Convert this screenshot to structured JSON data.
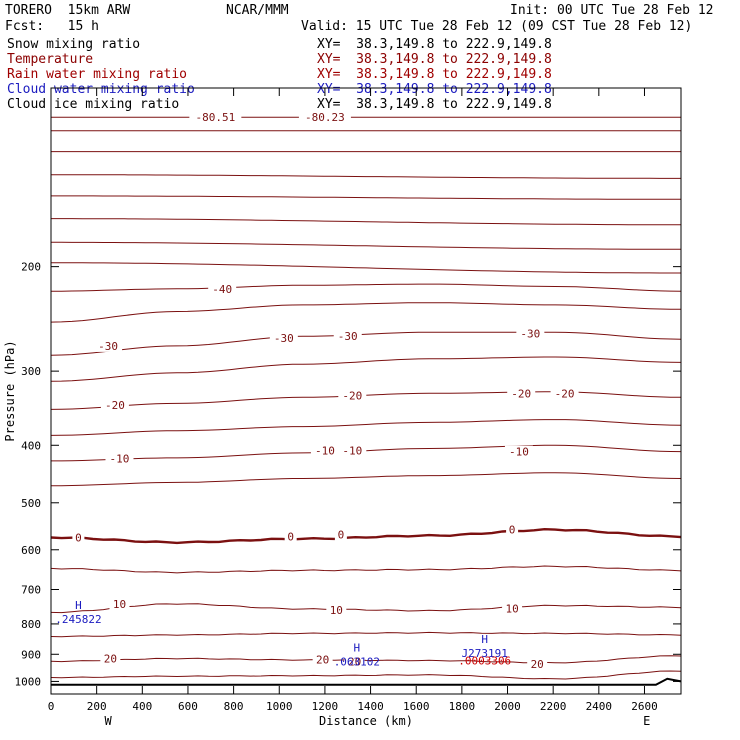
{
  "header": {
    "model": "TORERO  15km ARW",
    "center": "NCAR/MMM",
    "init": "Init: 00 UTC Tue 28 Feb 12",
    "fcst": "Fcst:   15 h",
    "valid": "Valid: 15 UTC Tue 28 Feb 12 (09 CST Tue 28 Feb 12)",
    "fields": [
      {
        "label": "Snow mixing ratio",
        "xy": "XY=  38.3,149.8 to 222.9,149.8",
        "color": "#000000"
      },
      {
        "label": "Temperature",
        "xy": "XY=  38.3,149.8 to 222.9,149.8",
        "color": "#a00000"
      },
      {
        "label": "Rain water mixing ratio",
        "xy": "XY=  38.3,149.8 to 222.9,149.8",
        "color": "#a00000"
      },
      {
        "label": "Cloud water mixing ratio",
        "xy": "XY=  38.3,149.8 to 222.9,149.8",
        "color": "#1b1bbf"
      },
      {
        "label": "Cloud ice mixing ratio",
        "xy": "XY=  38.3,149.8 to 222.9,149.8",
        "color": "#000000"
      }
    ]
  },
  "chart_data": {
    "type": "contour",
    "xlabel": "Distance (km)",
    "ylabel": "Pressure (hPa)",
    "xlim": [
      0,
      2760
    ],
    "ylim": [
      1050,
      100
    ],
    "y_scale": "log",
    "x_ticks": [
      0,
      200,
      400,
      600,
      800,
      1000,
      1200,
      1400,
      1600,
      1800,
      2000,
      2200,
      2400,
      2600
    ],
    "y_ticks": [
      200,
      300,
      400,
      500,
      600,
      700,
      800,
      900,
      1000
    ],
    "x_end_labels": {
      "left": "W",
      "right": "E"
    },
    "colors": {
      "temperature": "#7b1010",
      "cloud_water": "#1b1bbf",
      "rain_water": "#cc0000",
      "terrain": "#000000"
    },
    "temperature_contours": [
      {
        "value": -80,
        "pressure": [
          112,
          112
        ]
      },
      {
        "value": -75,
        "pressure": [
          118,
          118
        ]
      },
      {
        "value": -70,
        "pressure": [
          128,
          128
        ]
      },
      {
        "value": -65,
        "pressure": [
          140,
          142
        ]
      },
      {
        "value": -60,
        "pressure": [
          152,
          154
        ]
      },
      {
        "value": -55,
        "pressure": [
          166,
          170
        ]
      },
      {
        "value": -50,
        "pressure": [
          182,
          187
        ]
      },
      {
        "value": -45,
        "pressure": [
          197,
          205
        ]
      },
      {
        "value": -40,
        "pressure": [
          220,
          218,
          215,
          214,
          216,
          220
        ]
      },
      {
        "value": -35,
        "pressure": [
          248,
          238,
          232,
          230,
          232,
          236
        ]
      },
      {
        "value": -30,
        "pressure": [
          282,
          272,
          262,
          258,
          258,
          265
        ]
      },
      {
        "value": -25,
        "pressure": [
          312,
          302,
          292,
          286,
          284,
          290
        ]
      },
      {
        "value": -20,
        "pressure": [
          348,
          340,
          332,
          327,
          325,
          332
        ]
      },
      {
        "value": -15,
        "pressure": [
          385,
          378,
          372,
          366,
          362,
          370
        ]
      },
      {
        "value": -10,
        "pressure": [
          425,
          420,
          412,
          405,
          400,
          410
        ]
      },
      {
        "value": -5,
        "pressure": [
          468,
          462,
          455,
          450,
          445,
          455
        ]
      },
      {
        "value": 0,
        "pressure": [
          572,
          583,
          575,
          568,
          555,
          570
        ]
      },
      {
        "value": 5,
        "pressure": [
          645,
          655,
          650,
          648,
          640,
          650
        ]
      },
      {
        "value": 10,
        "pressure": [
          765,
          740,
          755,
          760,
          745,
          750
        ]
      },
      {
        "value": 15,
        "pressure": [
          840,
          835,
          830,
          828,
          830,
          835
        ]
      },
      {
        "value": 20,
        "pressure": [
          925,
          915,
          920,
          922,
          930,
          905
        ]
      },
      {
        "value": 25,
        "pressure": [
          985,
          980,
          978,
          975,
          990,
          960
        ]
      }
    ],
    "temperature_labels": [
      {
        "text": "-80.51",
        "x": 720,
        "p": 112
      },
      {
        "text": "-80.23",
        "x": 1200,
        "p": 112
      },
      {
        "text": "-40",
        "x": 750,
        "p": 218
      },
      {
        "text": "-30",
        "x": 250,
        "p": 272
      },
      {
        "text": "-30",
        "x": 1020,
        "p": 264
      },
      {
        "text": "-30",
        "x": 1300,
        "p": 262
      },
      {
        "text": "-30",
        "x": 2100,
        "p": 259
      },
      {
        "text": "-20",
        "x": 280,
        "p": 342
      },
      {
        "text": "-20",
        "x": 1320,
        "p": 330
      },
      {
        "text": "-20",
        "x": 2060,
        "p": 327
      },
      {
        "text": "-20",
        "x": 2250,
        "p": 327
      },
      {
        "text": "-10",
        "x": 300,
        "p": 421
      },
      {
        "text": "-10",
        "x": 1200,
        "p": 408
      },
      {
        "text": "-10",
        "x": 1320,
        "p": 408
      },
      {
        "text": "-10",
        "x": 2050,
        "p": 410
      },
      {
        "text": "0",
        "x": 120,
        "p": 572
      },
      {
        "text": "0",
        "x": 1050,
        "p": 570
      },
      {
        "text": "0",
        "x": 1270,
        "p": 566
      },
      {
        "text": "0",
        "x": 2020,
        "p": 555
      },
      {
        "text": "10",
        "x": 300,
        "p": 740
      },
      {
        "text": "10",
        "x": 1250,
        "p": 758
      },
      {
        "text": "10",
        "x": 2020,
        "p": 753
      },
      {
        "text": "20",
        "x": 260,
        "p": 915
      },
      {
        "text": "20",
        "x": 1190,
        "p": 918
      },
      {
        "text": "20",
        "x": 1330,
        "p": 925
      },
      {
        "text": "20",
        "x": 2130,
        "p": 935
      }
    ],
    "extrema": [
      {
        "letter": "H",
        "value": ".245822",
        "x": 120,
        "p": 785,
        "color": "#1b1bbf"
      },
      {
        "letter": "H",
        "value": ".063102",
        "x": 1340,
        "p": 925,
        "color": "#1b1bbf"
      },
      {
        "letter": "H",
        "value": "J273191",
        "x": 1900,
        "p": 895,
        "color": "#1b1bbf"
      },
      {
        "letter": "",
        "value": ".0003306",
        "x": 1900,
        "p": 922,
        "color": "#cc0000"
      }
    ],
    "terrain_pressure": 1013
  }
}
